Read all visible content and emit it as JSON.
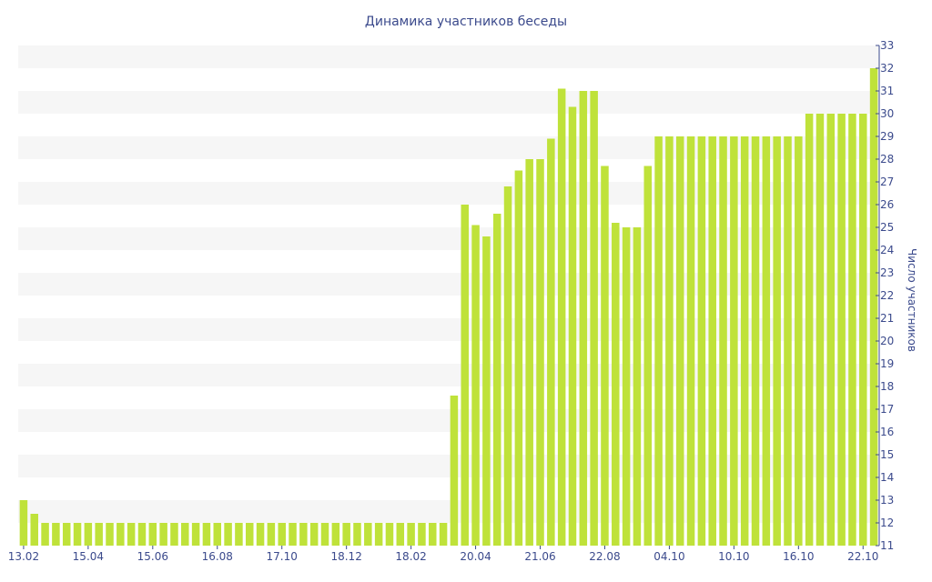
{
  "chart_data": {
    "type": "bar",
    "title": "Динамика участников беседы",
    "ylabel": "Число участников",
    "xlabel": "",
    "ylim": [
      11,
      33
    ],
    "grid": true,
    "colors": {
      "bar": "#bfe23a",
      "band": "#f6f6f6",
      "text": "#3b4a8c",
      "axis": "#3b4a8c"
    },
    "y_ticks": [
      11,
      12,
      13,
      14,
      15,
      16,
      17,
      18,
      19,
      20,
      21,
      22,
      23,
      24,
      25,
      26,
      27,
      28,
      29,
      30,
      31,
      32,
      33
    ],
    "x_tick_labels": [
      "13.02",
      "15.04",
      "15.06",
      "16.08",
      "17.10",
      "18.12",
      "18.02",
      "20.04",
      "21.06",
      "22.08",
      "04.10",
      "10.10",
      "16.10",
      "22.10"
    ],
    "x_tick_indices": [
      0,
      6,
      12,
      18,
      24,
      30,
      36,
      42,
      48,
      54,
      60,
      66,
      72,
      78
    ],
    "values": [
      13,
      12.4,
      12,
      12,
      12,
      12,
      12,
      12,
      12,
      12,
      12,
      12,
      12,
      12,
      12,
      12,
      12,
      12,
      12,
      12,
      12,
      12,
      12,
      12,
      12,
      12,
      12,
      12,
      12,
      12,
      12,
      12,
      12,
      12,
      12,
      12,
      12,
      12,
      12,
      12,
      17.6,
      26,
      25.1,
      24.6,
      25.6,
      26.8,
      27.5,
      28,
      28,
      28.9,
      31.1,
      30.3,
      31,
      31,
      27.7,
      25.2,
      25,
      25,
      27.7,
      29,
      29,
      29,
      29,
      29,
      29,
      29,
      29,
      29,
      29,
      29,
      29,
      29,
      29,
      30,
      30,
      30,
      30,
      30,
      30,
      32
    ]
  }
}
